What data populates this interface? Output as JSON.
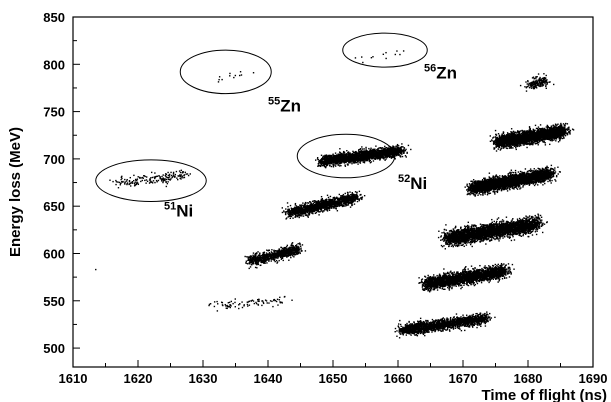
{
  "chart_data": {
    "type": "scatter",
    "title": "",
    "xlabel": "Time of flight (ns)",
    "ylabel": "Energy loss (MeV)",
    "xlim": [
      1610,
      1690
    ],
    "ylim": [
      480,
      850
    ],
    "xticks": [
      1610,
      1620,
      1630,
      1640,
      1650,
      1660,
      1670,
      1680,
      1690
    ],
    "yticks": [
      500,
      550,
      600,
      650,
      700,
      750,
      800,
      850
    ],
    "grid": false,
    "point_color": "#000000",
    "clusters": [
      {
        "x_start": 1616,
        "y_start": 673,
        "x_end": 1628,
        "y_end": 684,
        "y_spread": 5,
        "count": 180
      },
      {
        "x_start": 1637,
        "y_start": 591,
        "x_end": 1645,
        "y_end": 605,
        "y_spread": 5,
        "count": 900
      },
      {
        "x_start": 1643,
        "y_start": 642,
        "x_end": 1654,
        "y_end": 660,
        "y_spread": 5,
        "count": 1500
      },
      {
        "x_start": 1648,
        "y_start": 697,
        "x_end": 1661,
        "y_end": 709,
        "y_spread": 5,
        "count": 2200
      },
      {
        "x_start": 1631,
        "y_start": 544,
        "x_end": 1643,
        "y_end": 551,
        "y_spread": 4,
        "count": 90
      },
      {
        "x_start": 1660,
        "y_start": 518,
        "x_end": 1674,
        "y_end": 532,
        "y_spread": 5,
        "count": 1800
      },
      {
        "x_start": 1664,
        "y_start": 567,
        "x_end": 1677,
        "y_end": 582,
        "y_spread": 6,
        "count": 2600
      },
      {
        "x_start": 1667,
        "y_start": 615,
        "x_end": 1682,
        "y_end": 632,
        "y_spread": 7,
        "count": 3400
      },
      {
        "x_start": 1671,
        "y_start": 668,
        "x_end": 1684,
        "y_end": 685,
        "y_spread": 6,
        "count": 3200
      },
      {
        "x_start": 1675,
        "y_start": 717,
        "x_end": 1686,
        "y_end": 730,
        "y_spread": 6,
        "count": 3000
      },
      {
        "x_start": 1680,
        "y_start": 776,
        "x_end": 1683,
        "y_end": 784,
        "y_spread": 5,
        "count": 160
      },
      {
        "x_start": 1631,
        "y_start": 780,
        "x_end": 1637,
        "y_end": 793,
        "y_spread": 4,
        "count": 12
      },
      {
        "x_start": 1654,
        "y_start": 805,
        "x_end": 1662,
        "y_end": 813,
        "y_spread": 3,
        "count": 12
      }
    ],
    "single_points": [
      {
        "x": 1613.5,
        "y": 583
      }
    ],
    "annotations": [
      {
        "id": "ni51",
        "mass": "51",
        "element": "Ni",
        "cx": 1622,
        "cy": 677,
        "rx": 8.5,
        "ry": 22,
        "label_x": 1624,
        "label_y": 639
      },
      {
        "id": "ni52",
        "mass": "52",
        "element": "Ni",
        "cx": 1652,
        "cy": 703,
        "rx": 7.5,
        "ry": 23,
        "label_x": 1660,
        "label_y": 668
      },
      {
        "id": "zn55",
        "mass": "55",
        "element": "Zn",
        "cx": 1633.5,
        "cy": 792,
        "rx": 7,
        "ry": 23,
        "label_x": 1640,
        "label_y": 750
      },
      {
        "id": "zn56",
        "mass": "56",
        "element": "Zn",
        "cx": 1658,
        "cy": 815,
        "rx": 6.5,
        "ry": 18,
        "label_x": 1664,
        "label_y": 785
      }
    ]
  }
}
